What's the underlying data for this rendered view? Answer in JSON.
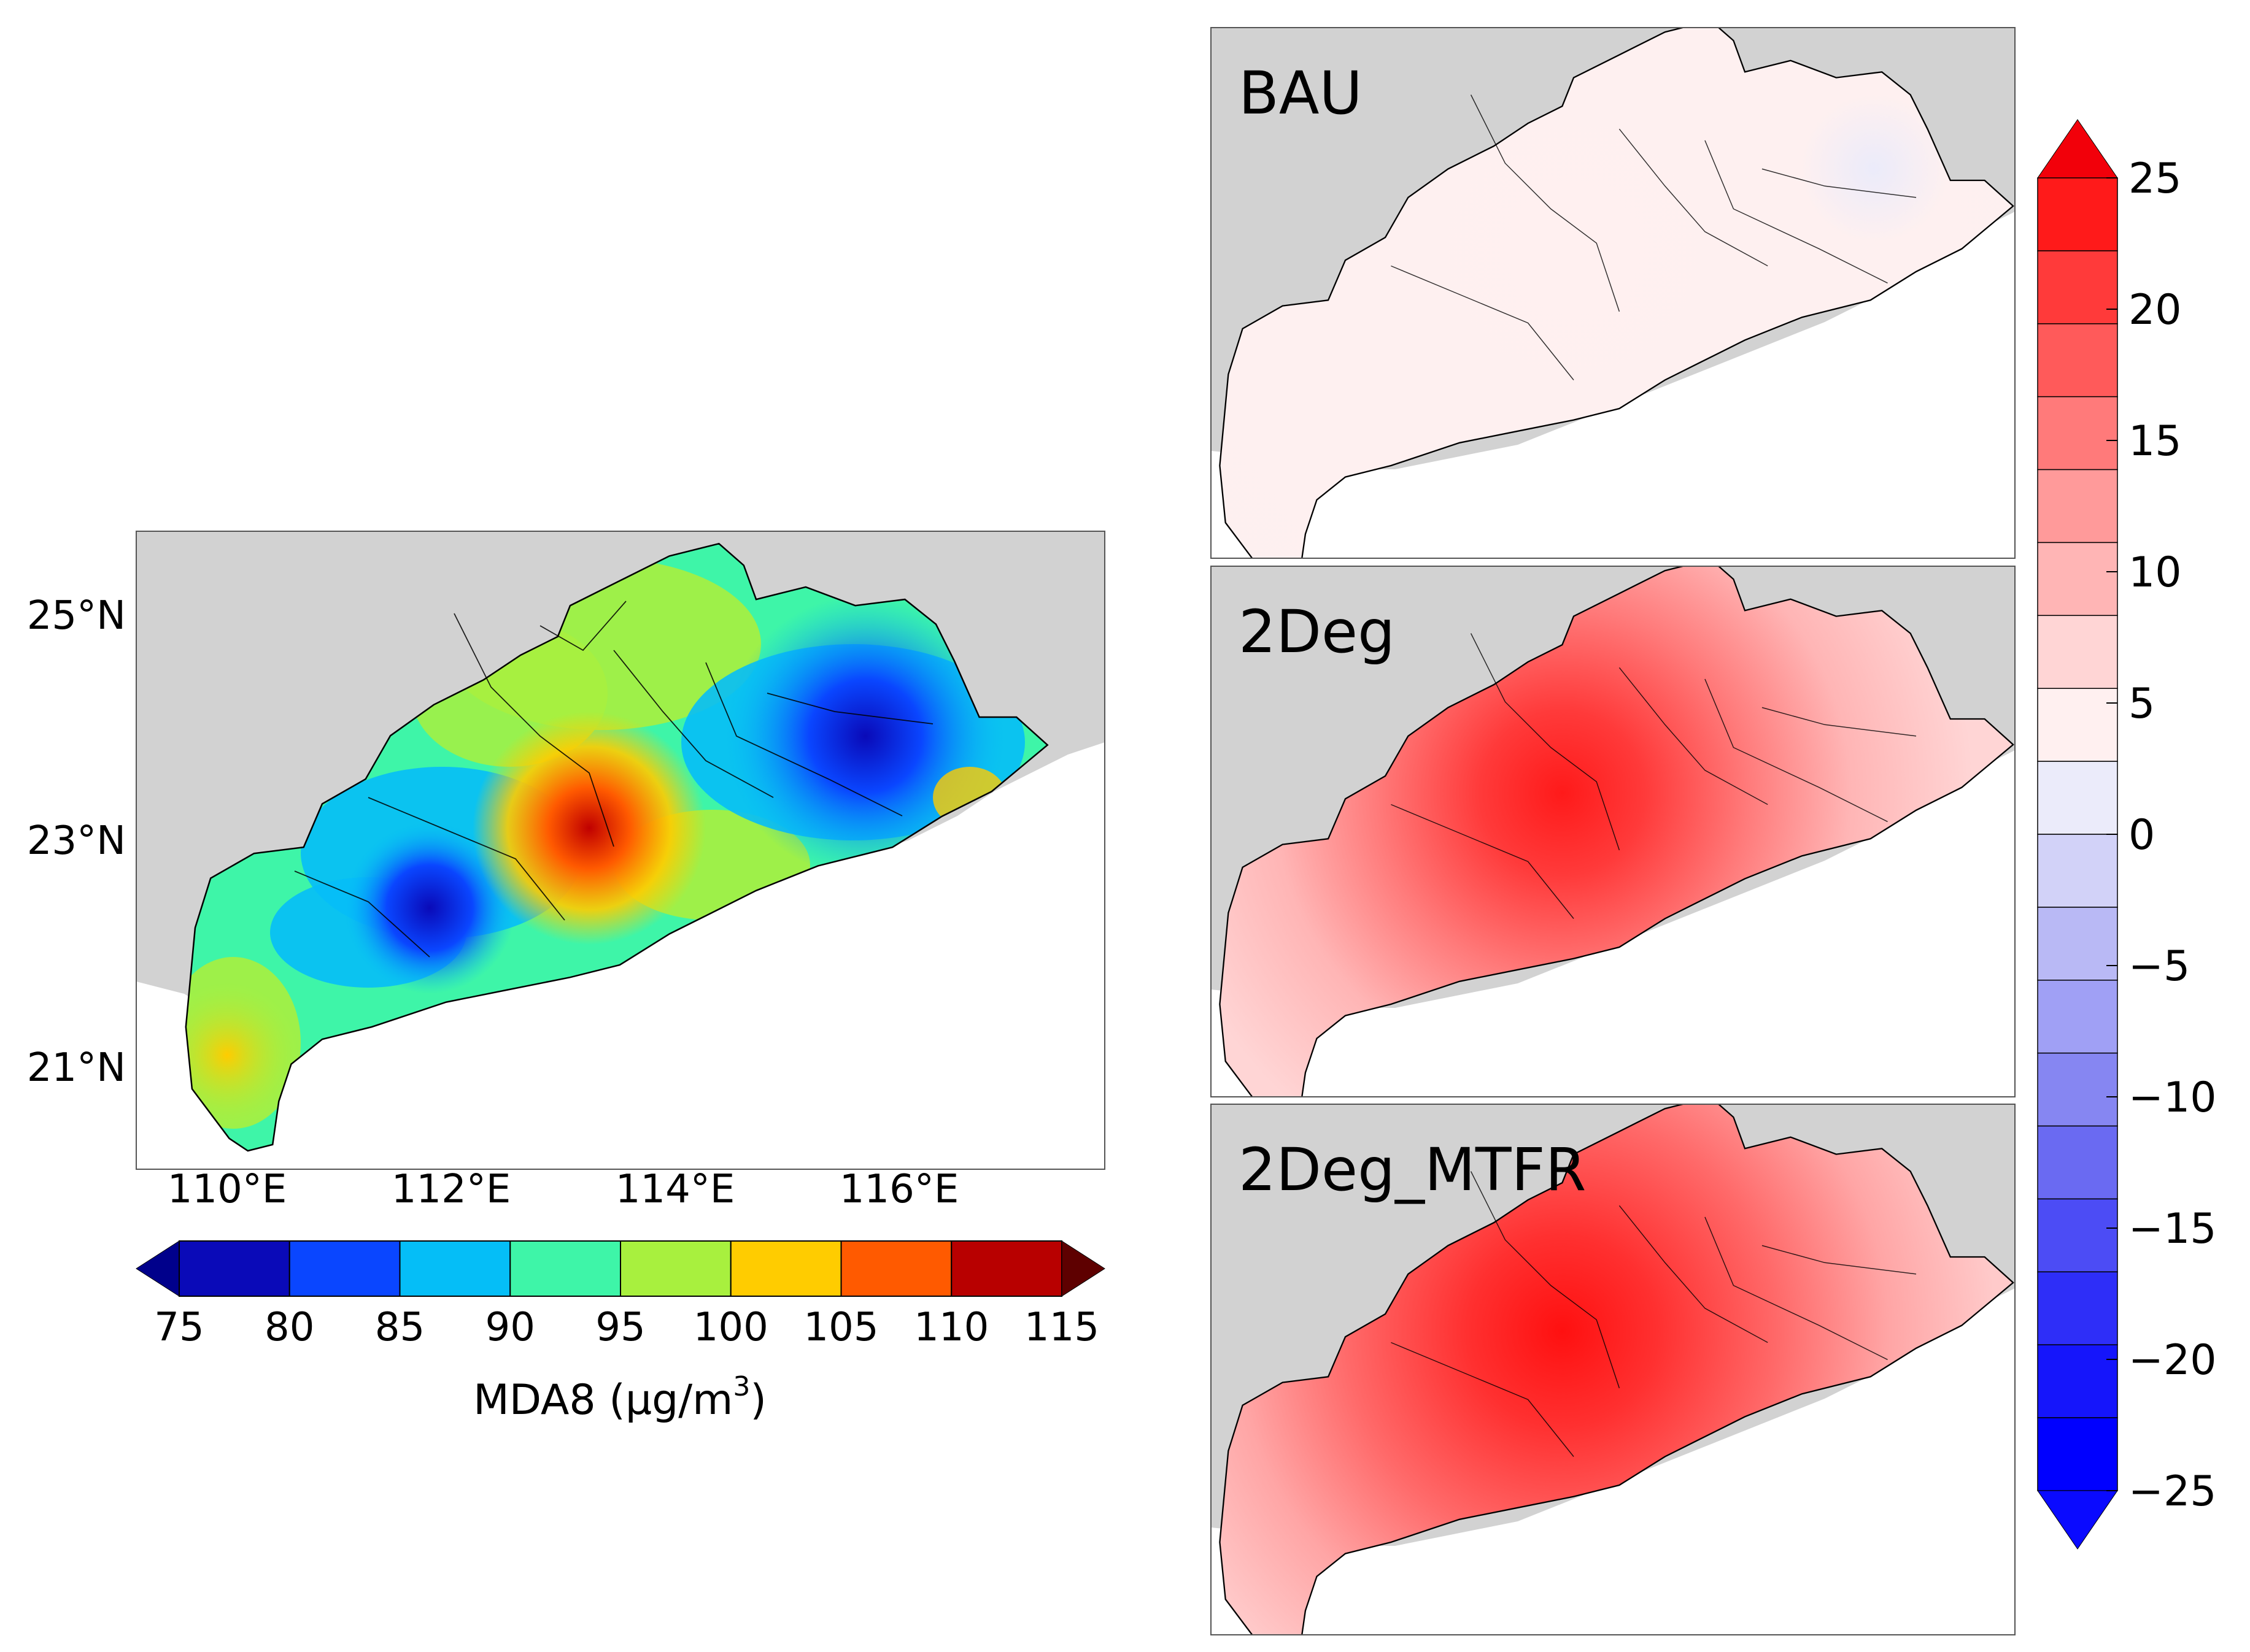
{
  "main_map": {
    "lat_ticks": [
      "25°N",
      "23°N",
      "21°N"
    ],
    "lon_ticks": [
      "110°E",
      "112°E",
      "114°E",
      "116°E"
    ]
  },
  "main_colorbar": {
    "tick_labels": [
      "75",
      "80",
      "85",
      "90",
      "95",
      "100",
      "105",
      "110",
      "115"
    ],
    "label_prefix": "MDA8 (μg/m",
    "label_sup": "3",
    "label_suffix": ")",
    "under_color": "#00008b",
    "over_color": "#5e0000",
    "colors": [
      "#0a0ab8",
      "#0a46ff",
      "#05bef7",
      "#3ef5a8",
      "#a8f03e",
      "#ffcc00",
      "#ff5a00",
      "#b80000"
    ]
  },
  "panels": [
    {
      "label": "BAU"
    },
    {
      "label": "2Deg"
    },
    {
      "label": "2Deg_MTFR"
    }
  ],
  "diff_colorbar": {
    "tick_labels": [
      "25",
      "20",
      "15",
      "10",
      "5",
      "0",
      "−5",
      "−10",
      "−15",
      "−20",
      "−25"
    ],
    "top_color": "#f2000a",
    "bottom_color": "#0a0aff",
    "colors": [
      "#ff1a1a",
      "#ff3a3a",
      "#ff5a5a",
      "#ff7a7a",
      "#ff9a9a",
      "#ffb5b5",
      "#ffd5d5",
      "#fff0f0",
      "#ebebfa",
      "#d2d2f8",
      "#b9b9f5",
      "#a0a0f5",
      "#8686f2",
      "#6a6af2",
      "#4c4cf5",
      "#2e2ef8",
      "#1515fb",
      "#0000ff"
    ]
  }
}
